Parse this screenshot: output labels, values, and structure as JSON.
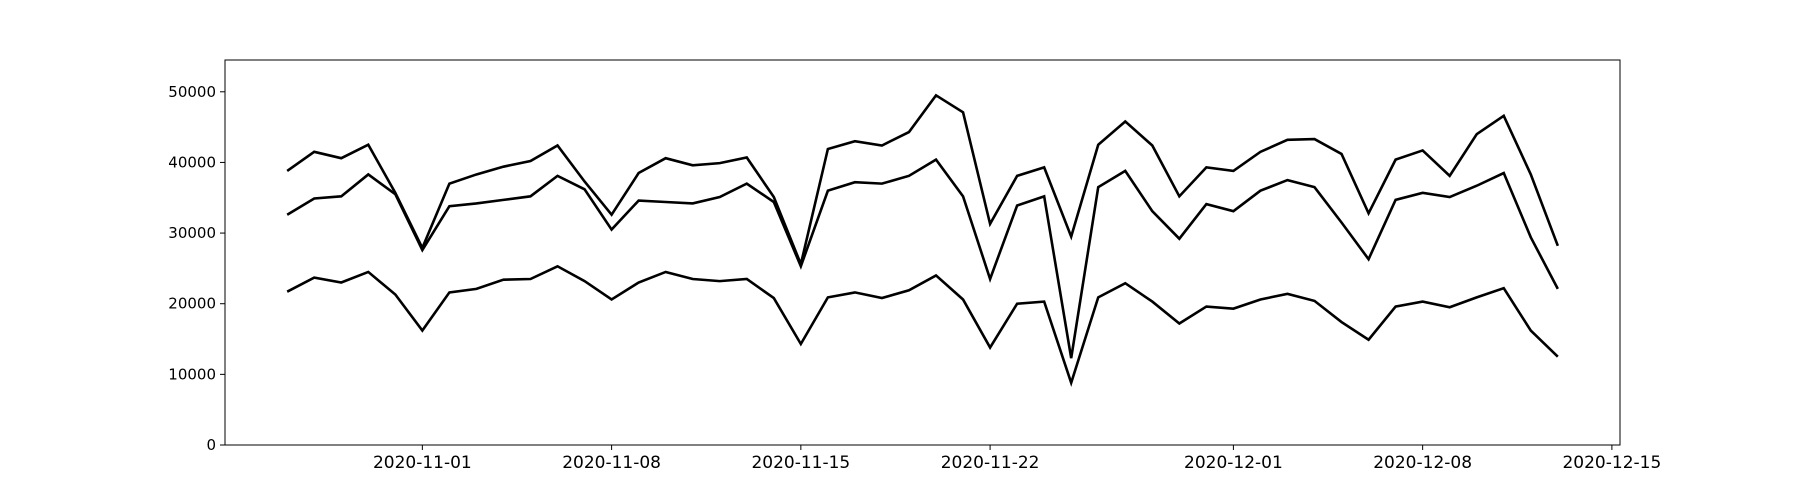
{
  "chart_data": {
    "type": "line",
    "x": [
      "2020-10-27",
      "2020-10-28",
      "2020-10-29",
      "2020-10-30",
      "2020-10-31",
      "2020-11-01",
      "2020-11-02",
      "2020-11-03",
      "2020-11-04",
      "2020-11-05",
      "2020-11-06",
      "2020-11-07",
      "2020-11-08",
      "2020-11-09",
      "2020-11-10",
      "2020-11-11",
      "2020-11-12",
      "2020-11-13",
      "2020-11-14",
      "2020-11-15",
      "2020-11-16",
      "2020-11-17",
      "2020-11-18",
      "2020-11-19",
      "2020-11-20",
      "2020-11-21",
      "2020-11-22",
      "2020-11-23",
      "2020-11-24",
      "2020-11-25",
      "2020-11-26",
      "2020-11-27",
      "2020-11-28",
      "2020-11-29",
      "2020-11-30",
      "2020-12-01",
      "2020-12-02",
      "2020-12-03",
      "2020-12-04",
      "2020-12-05",
      "2020-12-06",
      "2020-12-07",
      "2020-12-08",
      "2020-12-09",
      "2020-12-10",
      "2020-12-11",
      "2020-12-12",
      "2020-12-13"
    ],
    "series": [
      {
        "color": "#000000",
        "values": [
          38800,
          41500,
          40600,
          42500,
          35700,
          27900,
          37000,
          38300,
          39400,
          40200,
          42400,
          37300,
          32600,
          38500,
          40600,
          39600,
          39900,
          40700,
          35100,
          25600,
          41900,
          43000,
          42400,
          44300,
          49500,
          47100,
          31300,
          38100,
          39300,
          29500,
          42500,
          45800,
          42400,
          35200,
          39300,
          38800,
          41500,
          43200,
          43300,
          41200,
          32800,
          40400,
          41700,
          38100,
          44000,
          46600,
          38300,
          28200
        ]
      },
      {
        "color": "#000000",
        "values": [
          32600,
          34900,
          35200,
          38300,
          35500,
          27600,
          33800,
          34200,
          34700,
          35200,
          38100,
          36200,
          30500,
          34600,
          34400,
          34200,
          35100,
          37000,
          34400,
          25300,
          36000,
          37200,
          37000,
          38100,
          40400,
          35200,
          23500,
          33900,
          35200,
          12300,
          36500,
          38800,
          33100,
          29200,
          34100,
          33100,
          36000,
          37500,
          36500,
          31500,
          26300,
          34700,
          35700,
          35100,
          36700,
          38500,
          29400,
          22100
        ]
      },
      {
        "color": "#000000",
        "values": [
          21700,
          23700,
          23000,
          24500,
          21300,
          16200,
          21600,
          22100,
          23400,
          23500,
          25300,
          23200,
          20600,
          23000,
          24500,
          23500,
          23200,
          23500,
          20800,
          14300,
          20900,
          21600,
          20800,
          21900,
          24000,
          20600,
          13800,
          20000,
          20300,
          8800,
          20900,
          22900,
          20300,
          17200,
          19600,
          19300,
          20600,
          21400,
          20400,
          17400,
          14900,
          19600,
          20300,
          19500,
          20900,
          22200,
          16200,
          12500
        ]
      }
    ],
    "xlim": [
      "2020-10-24T16:48:00Z",
      "2020-12-15T07:12:00Z"
    ],
    "xticks": [
      "2020-11-01",
      "2020-11-08",
      "2020-11-15",
      "2020-11-22",
      "2020-12-01",
      "2020-12-08",
      "2020-12-15"
    ],
    "ylim": [
      0,
      54500
    ],
    "yticks": [
      0,
      10000,
      20000,
      30000,
      40000,
      50000
    ],
    "grid": false
  }
}
